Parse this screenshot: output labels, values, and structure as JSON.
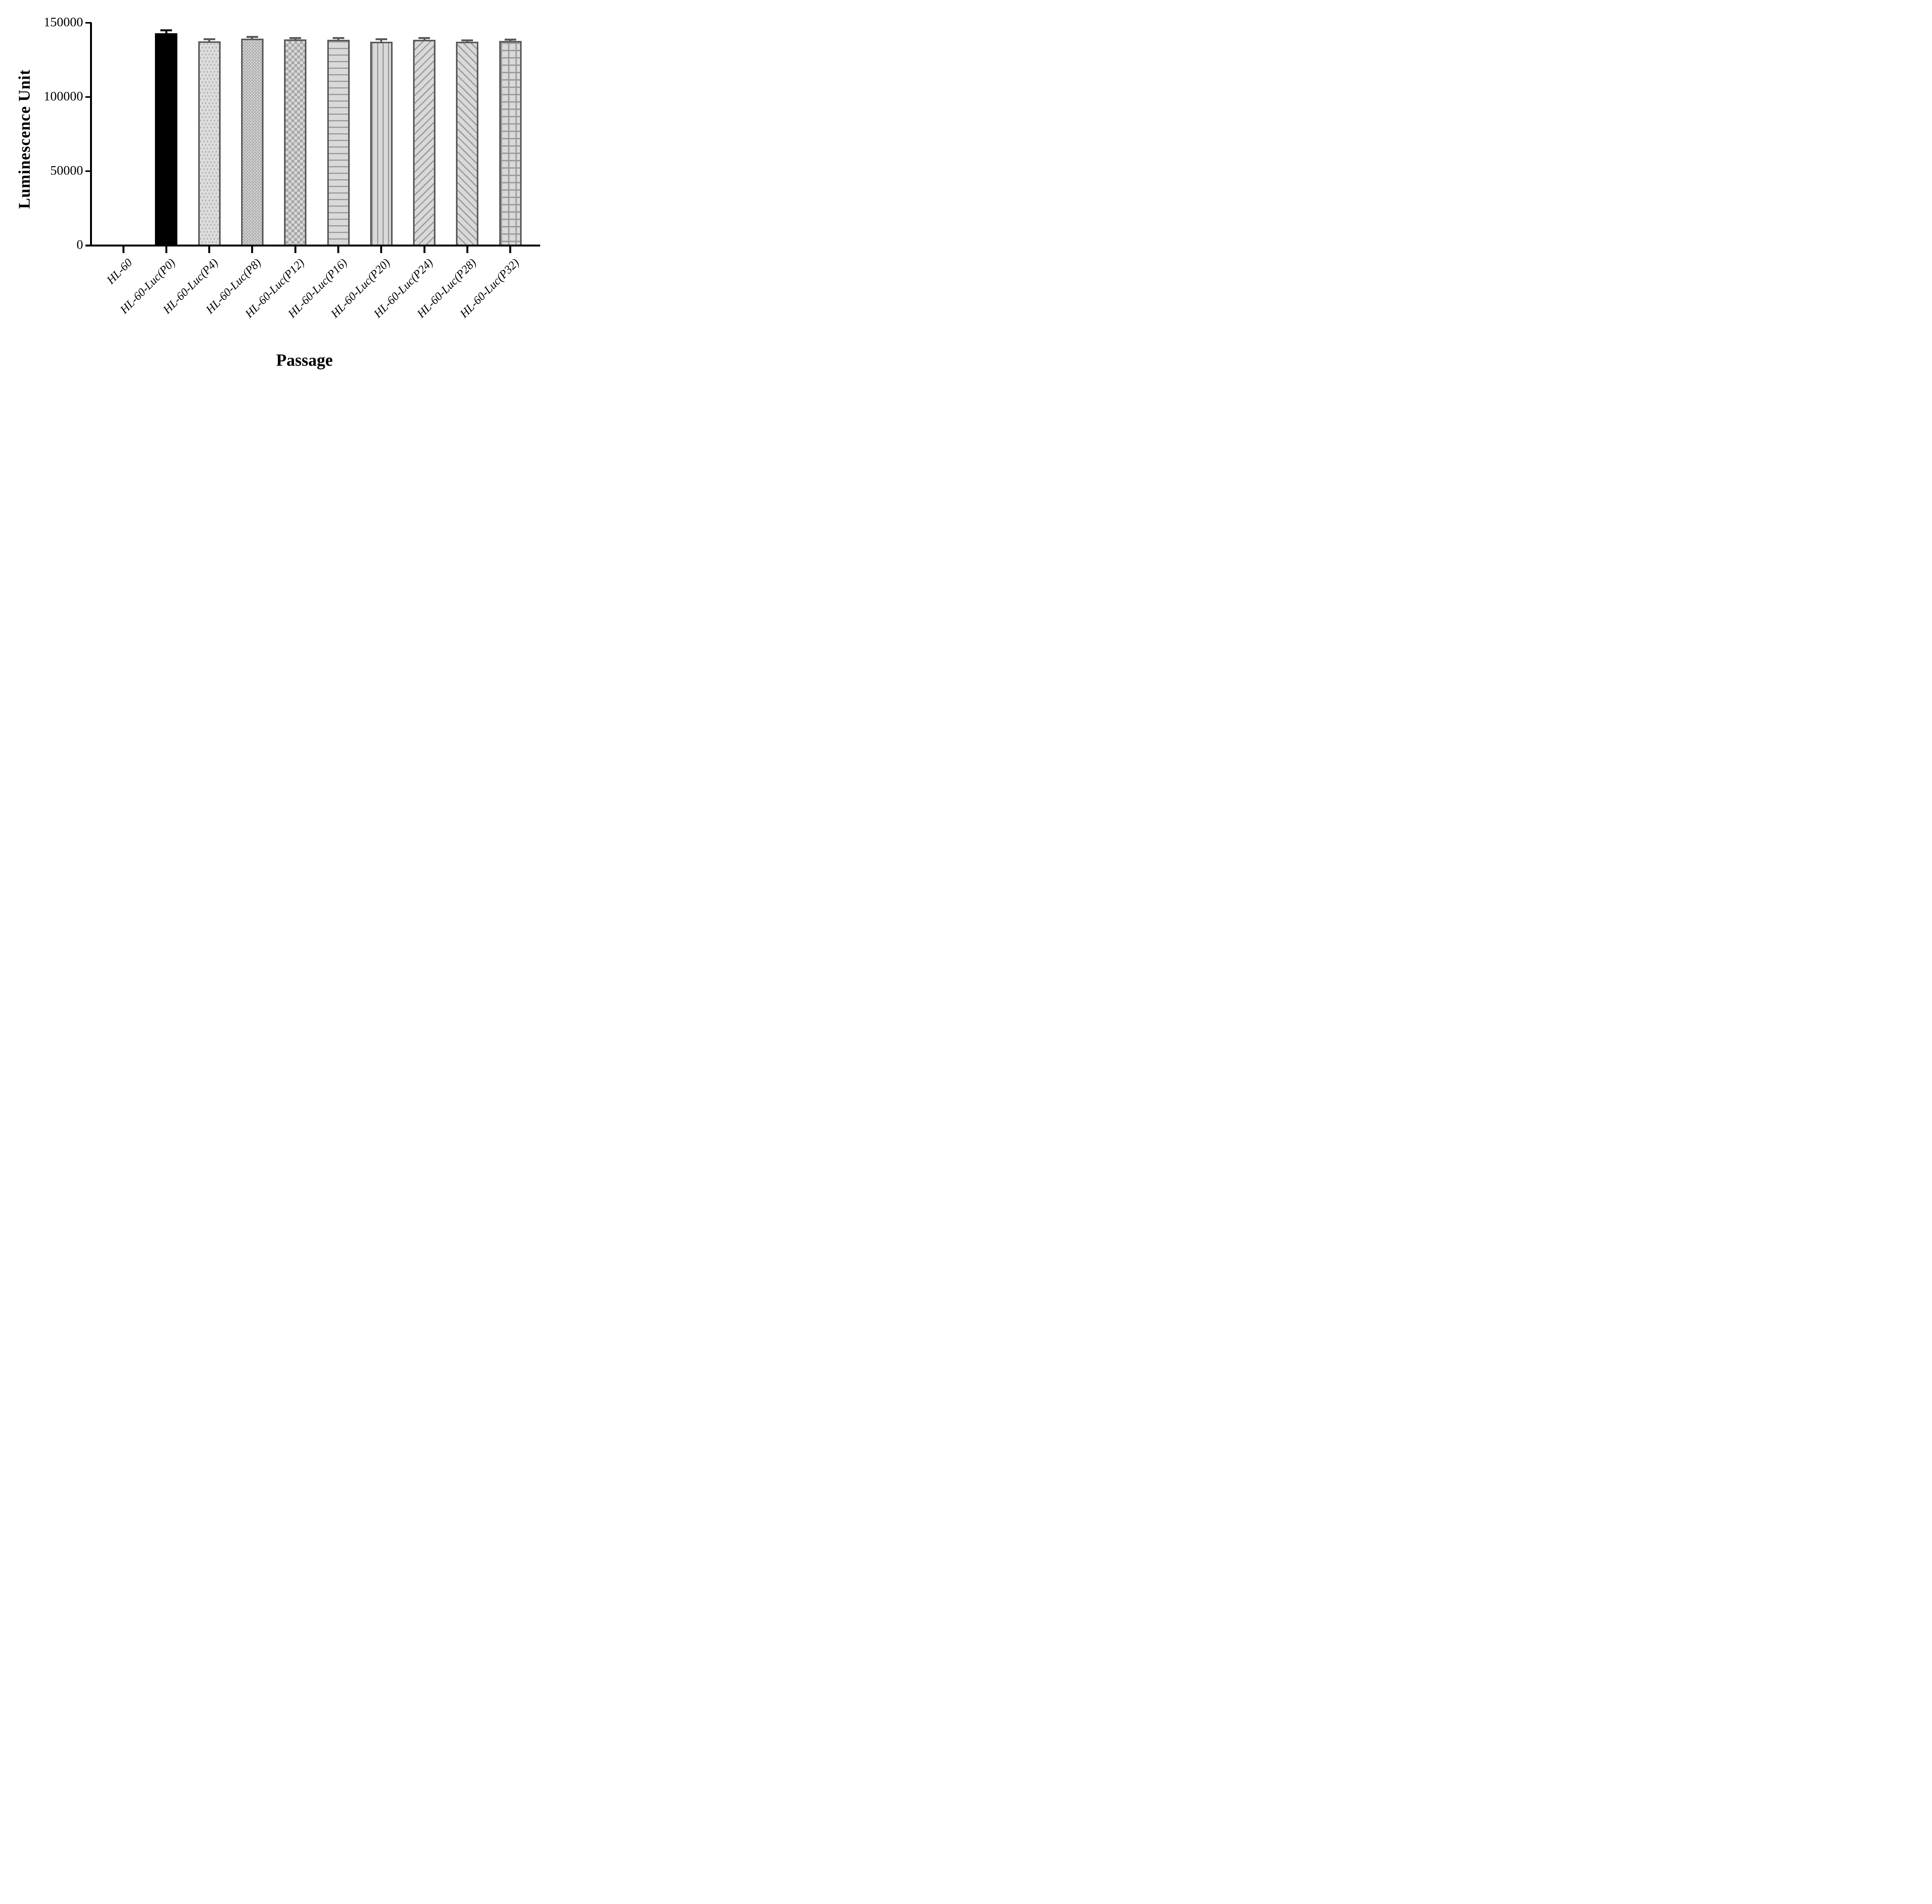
{
  "chart_data": {
    "type": "bar",
    "title": "",
    "xlabel": "Passage",
    "ylabel": "Luminescence Unit",
    "ylim": [
      0,
      150000
    ],
    "yticks": [
      0,
      50000,
      100000,
      150000
    ],
    "grid": false,
    "legend": false,
    "categories": [
      "HL-60",
      "HL-60-Luc(P0)",
      "HL-60-Luc(P4)",
      "HL-60-Luc(P8)",
      "HL-60-Luc(P12)",
      "HL-60-Luc(P16)",
      "HL-60-Luc(P20)",
      "HL-60-Luc(P24)",
      "HL-60-Luc(P28)",
      "HL-60-Luc(P32)"
    ],
    "values": [
      400,
      143000,
      137500,
      139200,
      138700,
      138500,
      137300,
      138600,
      137200,
      137800
    ],
    "errors": [
      100,
      1500,
      1000,
      900,
      700,
      900,
      1300,
      700,
      600,
      400
    ],
    "bar_styles": [
      "solid-black",
      "solid-black",
      "dots",
      "checker-fine",
      "checker-coarse",
      "h-lines",
      "v-lines",
      "diag-up",
      "diag-down",
      "grid"
    ],
    "colors": {
      "black_bar": "#000000",
      "bar_fill": "#d9d9d9",
      "pattern_line": "#9a9a9a",
      "bar_border": "#595959",
      "gray_error": "#595959",
      "axis": "#000000",
      "background": "#ffffff"
    }
  }
}
